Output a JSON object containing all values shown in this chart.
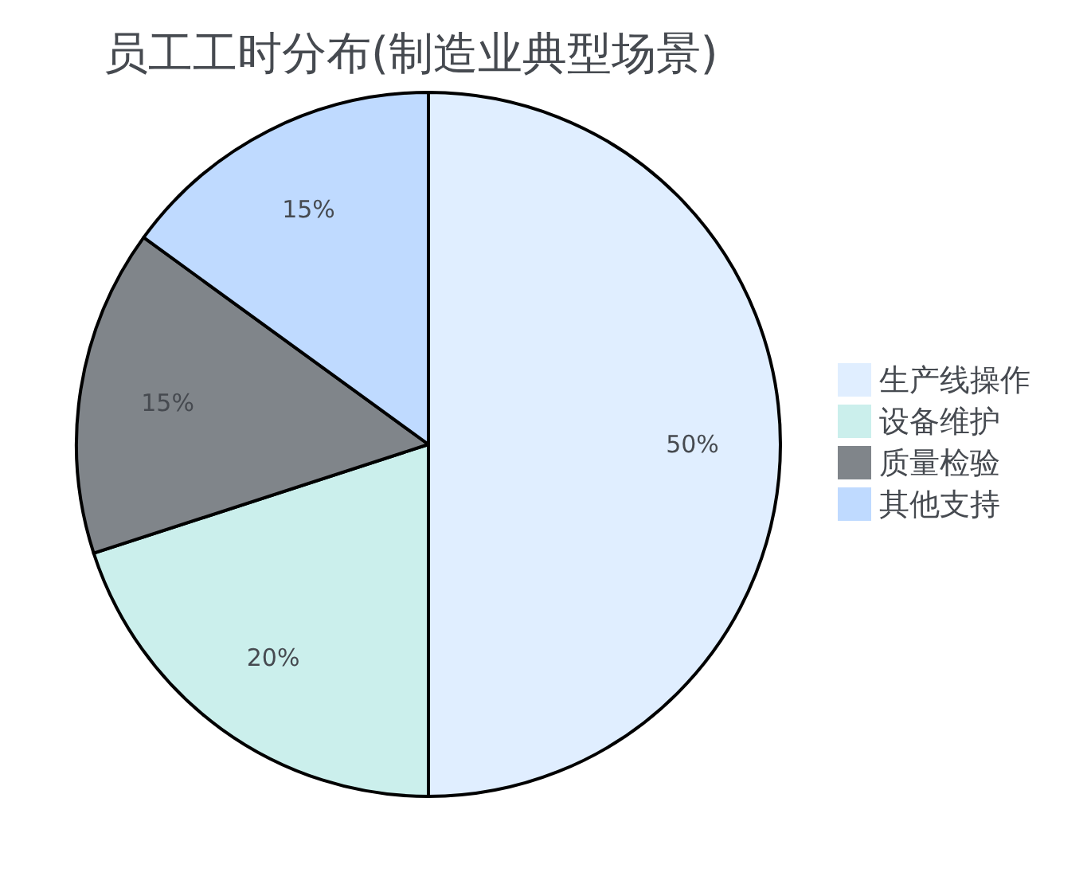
{
  "chart_data": {
    "type": "pie",
    "title": "员工工时分布(制造业典型场景)",
    "categories": [
      "生产线操作",
      "设备维护",
      "质量检验",
      "其他支持"
    ],
    "values": [
      50,
      20,
      15,
      15
    ],
    "colors": [
      "#e0eeff",
      "#cbefec",
      "#80858a",
      "#bfdaff"
    ],
    "value_labels": [
      "50%",
      "20%",
      "15%",
      "15%"
    ],
    "legend": "right"
  }
}
